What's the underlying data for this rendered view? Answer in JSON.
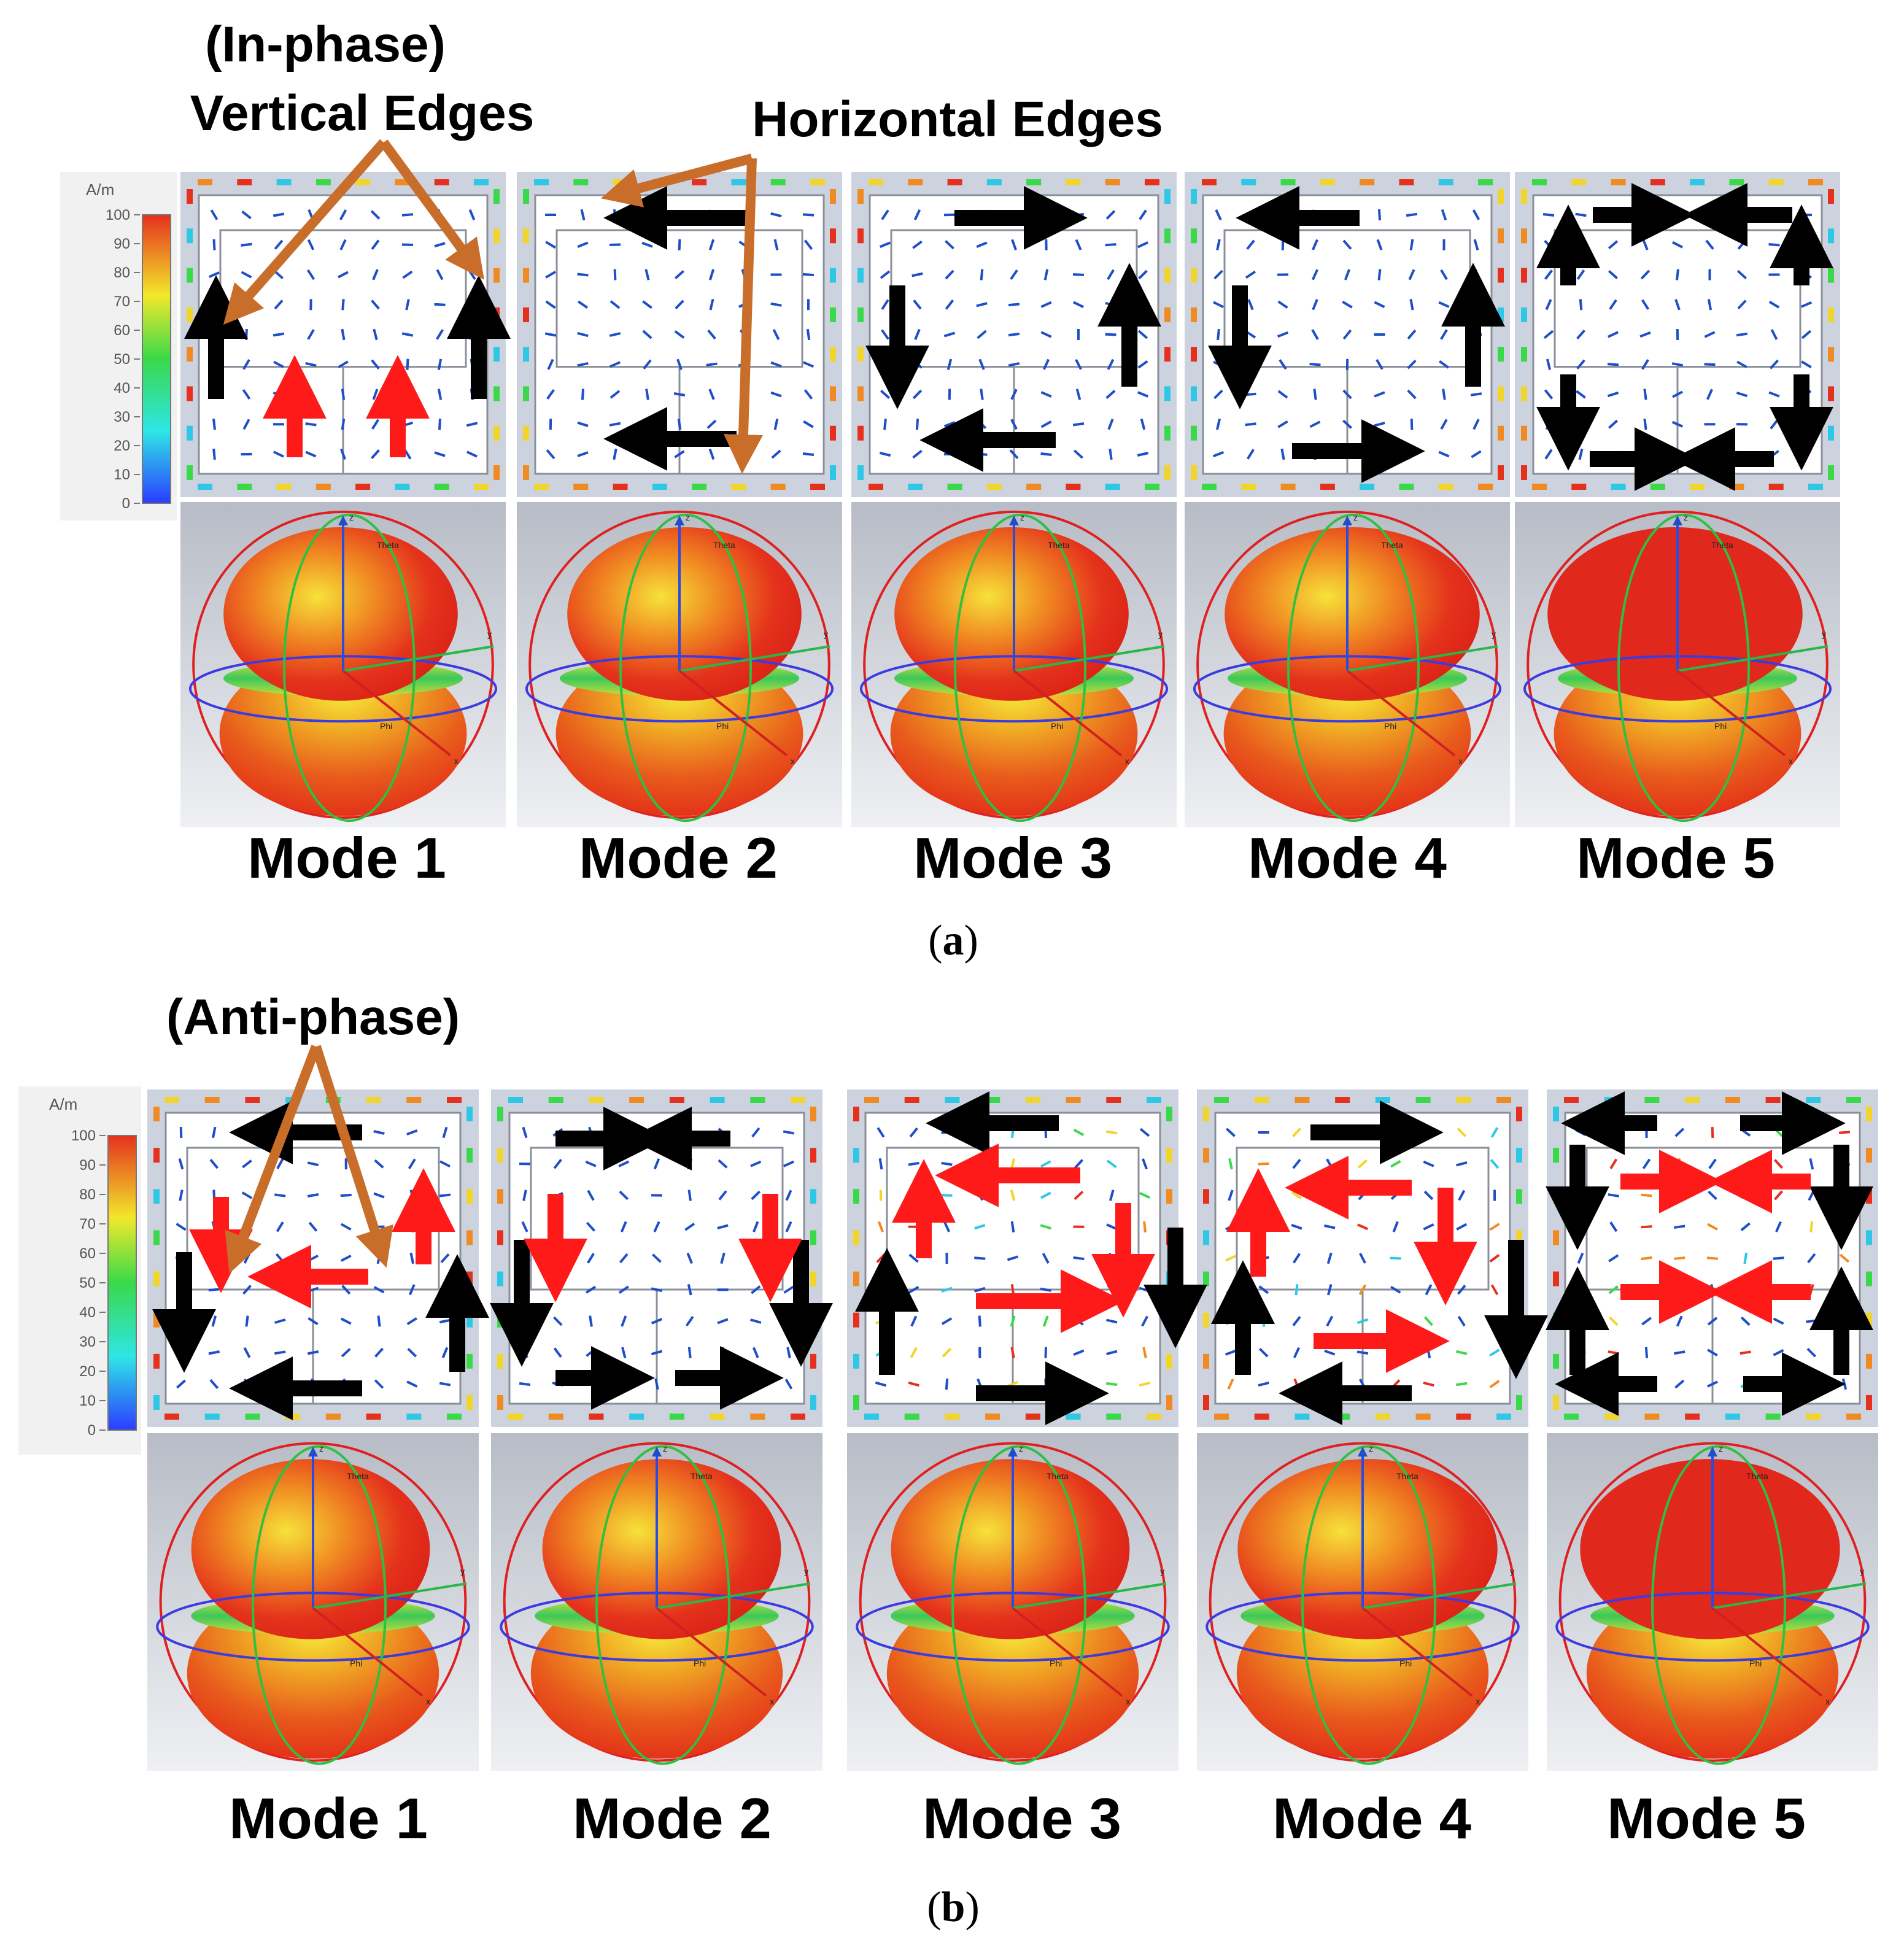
{
  "panel_a": {
    "annotation_vertical_1": "(In-phase)",
    "annotation_vertical_2": "Vertical Edges",
    "annotation_horizontal": "Horizontal Edges",
    "modes": [
      "Mode 1",
      "Mode 2",
      "Mode 3",
      "Mode 4",
      "Mode 5"
    ],
    "caption_prefix": "(",
    "caption_letter": "a",
    "caption_suffix": ")"
  },
  "panel_b": {
    "annotation": "(Anti-phase)",
    "modes": [
      "Mode 1",
      "Mode 2",
      "Mode 3",
      "Mode 4",
      "Mode 5"
    ],
    "caption_prefix": "(",
    "caption_letter": "b",
    "caption_suffix": ")"
  },
  "colorbar": {
    "unit": "A/m",
    "ticks": [
      "100",
      "90",
      "80",
      "70",
      "60",
      "50",
      "40",
      "30",
      "20",
      "10",
      "0"
    ]
  },
  "pattern_axes": {
    "z": "z",
    "y": "y",
    "x": "x",
    "theta": "Theta",
    "phi": "Phi"
  },
  "colors": {
    "annotation_arrow": "#C86E2A",
    "flow_arrow_black": "#000000",
    "flow_arrow_red": "#FF1A1A",
    "vector_blue": "#1F4FC8",
    "pattern_red": "#E0281C",
    "pattern_yellow": "#F2D52A",
    "pattern_green": "#3CC85A"
  }
}
